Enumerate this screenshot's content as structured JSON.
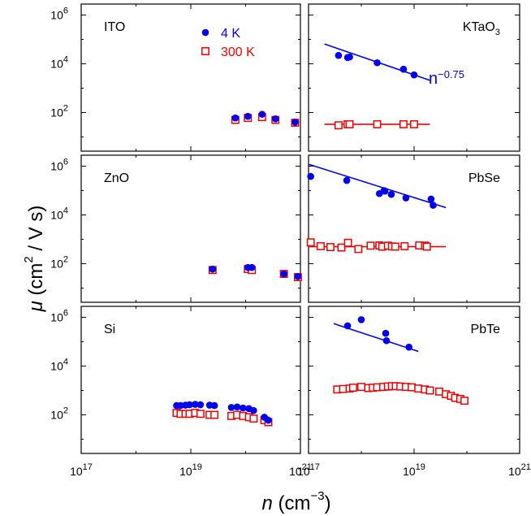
{
  "chart_data": {
    "type": "scatter",
    "xlabel": {
      "sym": "n",
      "unit_open": " (cm",
      "unit_sup": "−3",
      "unit_close": ")"
    },
    "ylabel": {
      "sym": "μ",
      "unit_open": " (cm",
      "unit_sup": "2",
      "unit_close": " / V s)"
    },
    "x_scale": "log",
    "y_scale": "log",
    "x_ticks": [
      {
        "base": "10",
        "exp": "17"
      },
      {
        "base": "10",
        "exp": "19"
      },
      {
        "base": "10",
        "exp": "21"
      }
    ],
    "y_ticks": [
      {
        "base": "10",
        "exp": "2"
      },
      {
        "base": "10",
        "exp": "4"
      },
      {
        "base": "10",
        "exp": "6"
      }
    ],
    "legend": [
      {
        "label": "4 K",
        "color": "#0000ee",
        "marker": "filled-circle"
      },
      {
        "label": "300 K",
        "color": "#ee0000",
        "marker": "open-square"
      }
    ],
    "colors": {
      "low_T": "#0000ee",
      "room_T": "#ee0000"
    },
    "panels": [
      {
        "label": "ITO",
        "label_sub": "",
        "xlim": [
          1e+17,
          1e+21
        ],
        "ylim": [
          1,
          3000000.0
        ],
        "series": [
          {
            "name": "4 K",
            "x": [
              6.5e+19,
              1.1e+20,
              2e+20,
              3.5e+20,
              8e+20
            ],
            "y": [
              60,
              70,
              85,
              55,
              40
            ]
          },
          {
            "name": "300 K",
            "x": [
              6.5e+19,
              1.1e+20,
              2e+20,
              3.5e+20,
              8e+20
            ],
            "y": [
              50,
              60,
              65,
              50,
              38
            ]
          }
        ]
      },
      {
        "label": "KTaO",
        "label_sub": "3",
        "xlim": [
          1e+17,
          1e+21
        ],
        "ylim": [
          1,
          3000000.0
        ],
        "series": [
          {
            "name": "4 K",
            "x": [
              3.7e+17,
              5.5e+17,
              6e+17,
              2e+18,
              6.3e+18,
              1e+19
            ],
            "y": [
              22000,
              18000,
              19000,
              11000,
              6000,
              3500
            ]
          },
          {
            "name": "300 K",
            "x": [
              3.7e+17,
              5.5e+17,
              6e+17,
              2e+18,
              6.3e+18,
              1e+19
            ],
            "y": [
              30,
              33,
              33,
              33,
              33,
              33
            ]
          }
        ],
        "fits": [
          {
            "name": "4 K fit",
            "x": [
              2e+17,
              2e+19
            ],
            "y": [
              65000,
              2100
            ]
          },
          {
            "name": "300 K fit",
            "x": [
              2e+17,
              2e+19
            ],
            "y": [
              33,
              33
            ]
          }
        ],
        "annotation": {
          "base": "n",
          "exp": "−0.75"
        }
      },
      {
        "label": "ZnO",
        "label_sub": "",
        "xlim": [
          1e+17,
          1e+21
        ],
        "ylim": [
          1,
          3000000.0
        ],
        "series": [
          {
            "name": "4 K",
            "x": [
              2.5e+19,
              1.1e+20,
              1.3e+20,
              5e+20,
              9e+20
            ],
            "y": [
              60,
              70,
              70,
              38,
              30
            ]
          },
          {
            "name": "300 K",
            "x": [
              2.5e+19,
              1.1e+20,
              1.3e+20,
              5e+20,
              9e+20
            ],
            "y": [
              55,
              60,
              55,
              38,
              28
            ]
          }
        ]
      },
      {
        "label": "PbSe",
        "label_sub": "",
        "xlim": [
          1e+17,
          1e+21
        ],
        "ylim": [
          1,
          3000000.0
        ],
        "series": [
          {
            "name": "4 K",
            "x": [
              1.1e+17,
              5.3e+17,
              2.2e+18,
              2.7e+18,
              2.8e+18,
              3.7e+18,
              7e+18,
              2.1e+19,
              2.3e+19
            ],
            "y": [
              380000,
              260000,
              75000,
              100000,
              95000,
              70000,
              50000,
              45000,
              25000
            ]
          },
          {
            "name": "300 K",
            "x": [
              1.1e+17,
              1.7e+17,
              2.6e+17,
              4.2e+17,
              5.6e+17,
              8.8e+17,
              1.5e+18,
              2.2e+18,
              2.5e+18,
              3.2e+18,
              3.8e+18,
              4.4e+18,
              6.6e+18,
              1.25e+19,
              1.62e+19,
              1.75e+19
            ],
            "y": [
              750,
              520,
              480,
              460,
              720,
              400,
              550,
              560,
              500,
              550,
              510,
              500,
              520,
              560,
              550,
              500
            ]
          }
        ],
        "fits": [
          {
            "name": "4 K fit",
            "x": [
              1e+17,
              4e+19
            ],
            "y": [
              1200000,
              20000
            ]
          },
          {
            "name": "300 K fit",
            "x": [
              1e+17,
              4e+19
            ],
            "y": [
              500,
              500
            ]
          }
        ]
      },
      {
        "label": "Si",
        "label_sub": "",
        "xlim": [
          1e+17,
          1e+21
        ],
        "ylim": [
          1,
          3000000.0
        ],
        "series": [
          {
            "name": "4 K",
            "x": [
              5.5e+18,
              6.5e+18,
              8e+18,
              9.5e+18,
              1.2e+19,
              1.5e+19,
              2.2e+19,
              2.7e+19,
              5.5e+19,
              7e+19,
              9e+19,
              1.15e+20,
              1.4e+20,
              2.2e+20,
              2.6e+20
            ],
            "y": [
              240,
              240,
              250,
              260,
              270,
              260,
              250,
              240,
              200,
              210,
              190,
              180,
              150,
              80,
              60
            ]
          },
          {
            "name": "300 K",
            "x": [
              5.5e+18,
              6.5e+18,
              8e+18,
              9.5e+18,
              1.2e+19,
              1.5e+19,
              2.2e+19,
              2.7e+19,
              5.5e+19,
              7e+19,
              9e+19,
              1.15e+20,
              1.4e+20,
              2.2e+20,
              2.6e+20
            ],
            "y": [
              120,
              110,
              110,
              110,
              120,
              110,
              100,
              100,
              90,
              100,
              90,
              80,
              70,
              60,
              50
            ]
          }
        ]
      },
      {
        "label": "PbTe",
        "label_sub": "",
        "xlim": [
          1e+17,
          1e+21
        ],
        "ylim": [
          1,
          3000000.0
        ],
        "series": [
          {
            "name": "4 K",
            "x": [
              5.5e+17,
              1e+18,
              2.9e+18,
              3e+18,
              8e+18
            ],
            "y": [
              450000,
              800000,
              220000,
              110000,
              60000
            ]
          },
          {
            "name": "300 K",
            "x": [
              3.5e+17,
              4.5e+17,
              6e+17,
              7e+17,
              1e+18,
              1.35e+18,
              1.65e+18,
              2e+18,
              2.6e+18,
              3.2e+18,
              3.8e+18,
              4.5e+18,
              5.5e+18,
              7e+18,
              9e+18,
              1.2e+19,
              1.6e+19,
              2e+19,
              3e+19,
              4e+19,
              5e+19,
              6e+19,
              7.5e+19,
              9e+19
            ],
            "y": [
              1100,
              1150,
              1200,
              1300,
              1400,
              1250,
              1300,
              1350,
              1400,
              1450,
              1500,
              1500,
              1450,
              1400,
              1350,
              1200,
              1100,
              1000,
              900,
              700,
              600,
              500,
              450,
              380
            ]
          }
        ],
        "fits": [
          {
            "name": "4 K fit",
            "x": [
              3e+17,
              1.2e+19
            ],
            "y": [
              550000,
              40000
            ]
          }
        ]
      }
    ]
  }
}
